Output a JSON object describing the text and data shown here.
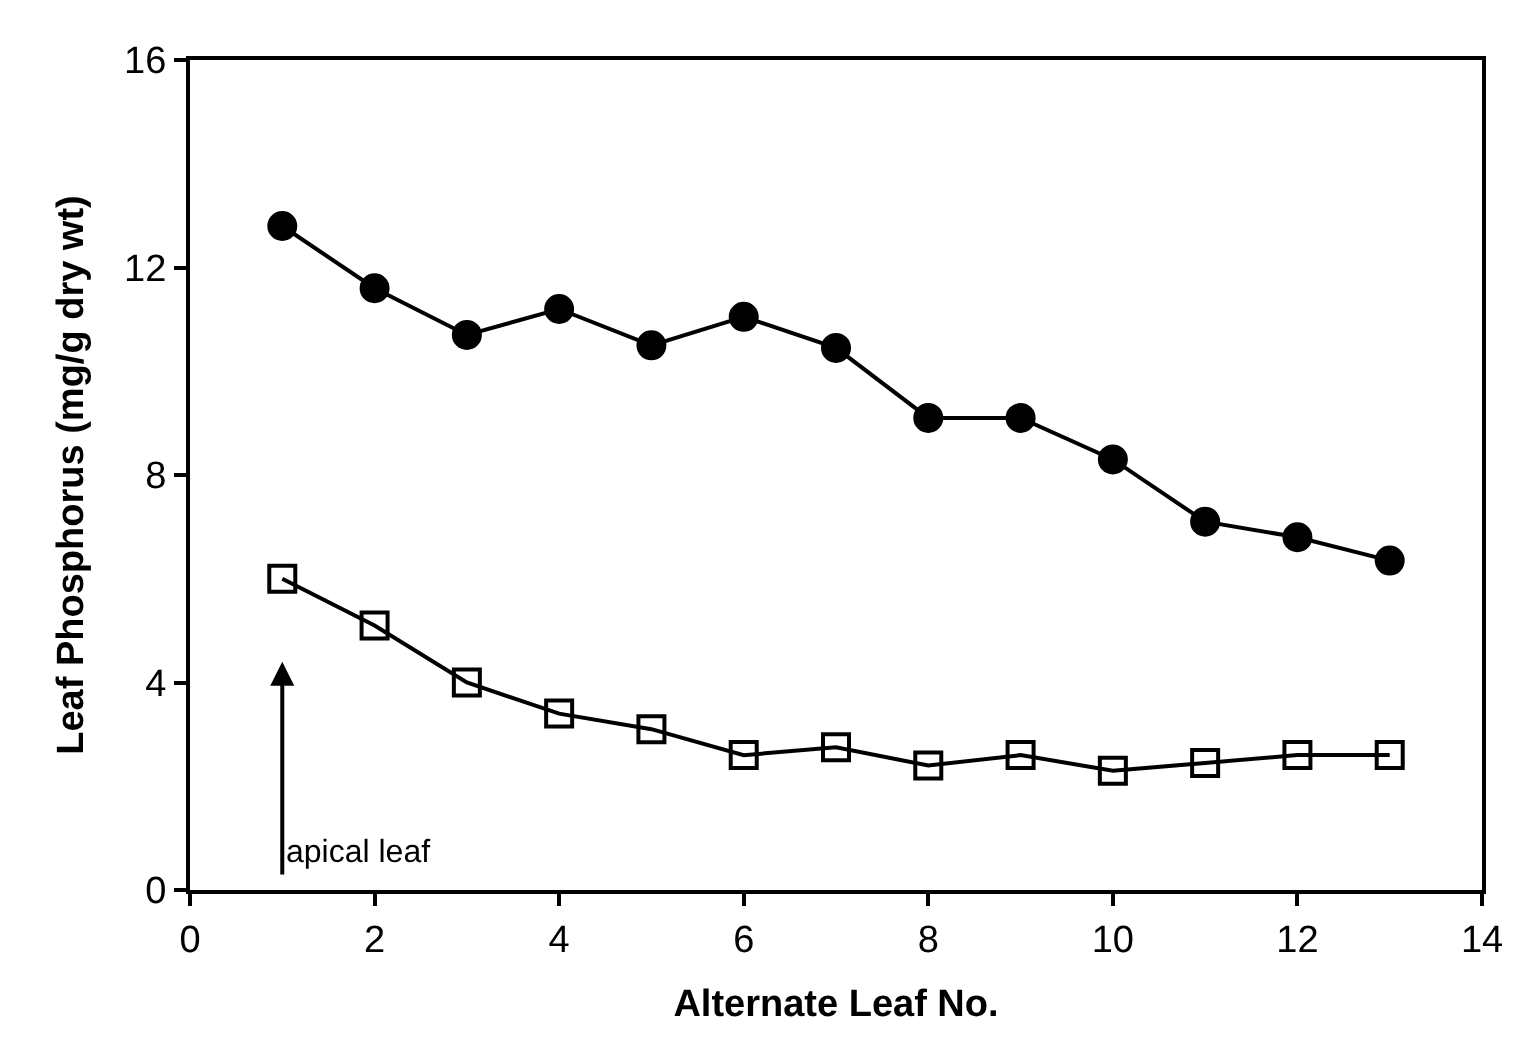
{
  "chart_data": {
    "type": "line",
    "xlabel": "Alternate Leaf No.",
    "ylabel": "Leaf Phosphorus (mg/g dry wt)",
    "x": [
      1,
      2,
      3,
      4,
      5,
      6,
      7,
      8,
      9,
      10,
      11,
      12,
      13
    ],
    "series": [
      {
        "color": "#000000",
        "marker": "circle",
        "values": [
          12.8,
          11.6,
          10.7,
          11.2,
          10.5,
          11.05,
          10.45,
          9.1,
          9.1,
          8.3,
          7.1,
          6.8,
          6.35
        ]
      },
      {
        "color": "#000000",
        "marker": "square",
        "values": [
          6.0,
          5.1,
          4.0,
          3.4,
          3.1,
          2.6,
          2.75,
          2.4,
          2.6,
          2.3,
          2.45,
          2.6,
          2.6
        ]
      }
    ],
    "xlim": [
      0,
      14
    ],
    "xticks": [
      0,
      2,
      4,
      6,
      8,
      10,
      12,
      14
    ],
    "ylim": [
      0,
      16
    ],
    "yticks": [
      0,
      4,
      8,
      12,
      16
    ],
    "line_style": "solid",
    "annotations": [
      "apical leaf"
    ]
  }
}
